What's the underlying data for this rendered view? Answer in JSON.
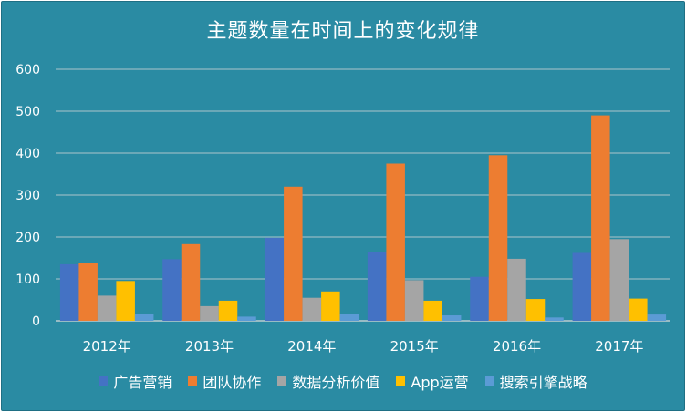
{
  "chart_data": {
    "type": "bar",
    "title": "主题数量在时间上的变化规律",
    "xlabel": "",
    "ylabel": "",
    "ylim": [
      0,
      600
    ],
    "yticks": [
      0,
      100,
      200,
      300,
      400,
      500,
      600
    ],
    "grid": true,
    "legend_position": "bottom",
    "categories": [
      "2012年",
      "2013年",
      "2014年",
      "2015年",
      "2016年",
      "2017年"
    ],
    "series": [
      {
        "name": "广告营销",
        "color": "#4472c4",
        "values": [
          135,
          147,
          198,
          165,
          105,
          162
        ]
      },
      {
        "name": "团队协作",
        "color": "#ed7d31",
        "values": [
          138,
          183,
          320,
          375,
          395,
          490
        ]
      },
      {
        "name": "数据分析价值",
        "color": "#a5a5a5",
        "values": [
          60,
          35,
          55,
          97,
          148,
          195
        ]
      },
      {
        "name": "App运营",
        "color": "#ffc000",
        "values": [
          95,
          48,
          70,
          48,
          52,
          53
        ]
      },
      {
        "name": "搜索引擎战略",
        "color": "#5b9bd5",
        "values": [
          17,
          10,
          17,
          13,
          8,
          15
        ]
      }
    ]
  }
}
